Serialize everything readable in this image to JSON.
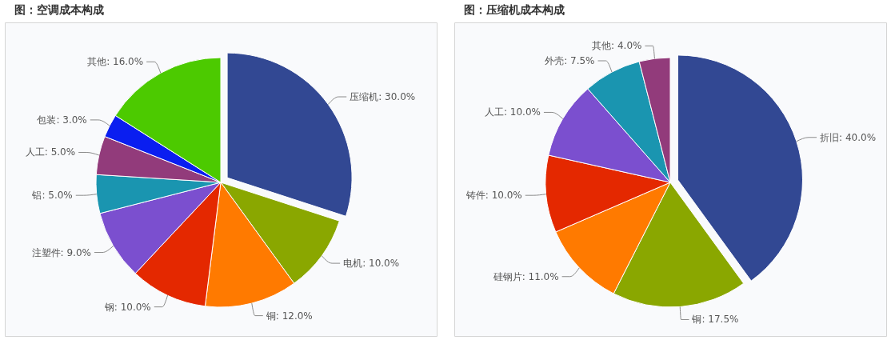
{
  "chart_data": [
    {
      "type": "pie",
      "title": "图：空调成本构成",
      "categories": [
        "压缩机",
        "电机",
        "铜",
        "钢",
        "注塑件",
        "铝",
        "人工",
        "包装",
        "其他"
      ],
      "values": [
        30,
        10,
        12,
        10,
        9,
        5,
        5,
        3,
        16
      ],
      "value_labels": [
        "30.0%",
        "10.0%",
        "12.0%",
        "10.0%",
        "9.0%",
        "5.0%",
        "5.0%",
        "3.0%",
        "16.0%"
      ],
      "colors": [
        "#324893",
        "#8aa700",
        "#ff7a00",
        "#e42800",
        "#7b4fcf",
        "#1a95b0",
        "#923b7b",
        "#0a1ef0",
        "#4cca00"
      ]
    },
    {
      "type": "pie",
      "title": "图：压缩机成本构成",
      "categories": [
        "折旧",
        "铜",
        "硅钢片",
        "铸件",
        "人工",
        "外壳",
        "其他"
      ],
      "values": [
        40,
        17.5,
        11,
        10,
        10,
        7.5,
        4
      ],
      "value_labels": [
        "40.0%",
        "17.5%",
        "11.0%",
        "10.0%",
        "10.0%",
        "7.5%",
        "4.0%"
      ],
      "colors": [
        "#324893",
        "#8aa700",
        "#ff7a00",
        "#e42800",
        "#7b4fcf",
        "#1a95b0",
        "#923b7b"
      ]
    }
  ]
}
